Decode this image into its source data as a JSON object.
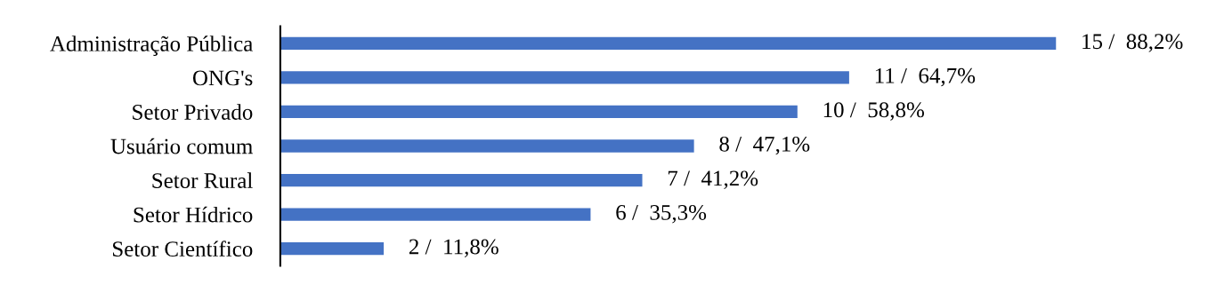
{
  "chart_data": {
    "type": "bar",
    "orientation": "horizontal",
    "categories": [
      "Administração Pública",
      "ONG's",
      "Setor Privado",
      "Usuário comum",
      "Setor Rural",
      "Setor Hídrico",
      "Setor Científico"
    ],
    "values": [
      15,
      11,
      10,
      8,
      7,
      6,
      2
    ],
    "value_labels": [
      "15 /  88,2%",
      "11 /  64,7%",
      "10 /  58,8%",
      "8 /  47,1%",
      "7 /  41,2%",
      "6 /  35,3%",
      "2 /  11,8%"
    ],
    "color": "#4472c4",
    "grid": false,
    "legend": false
  }
}
